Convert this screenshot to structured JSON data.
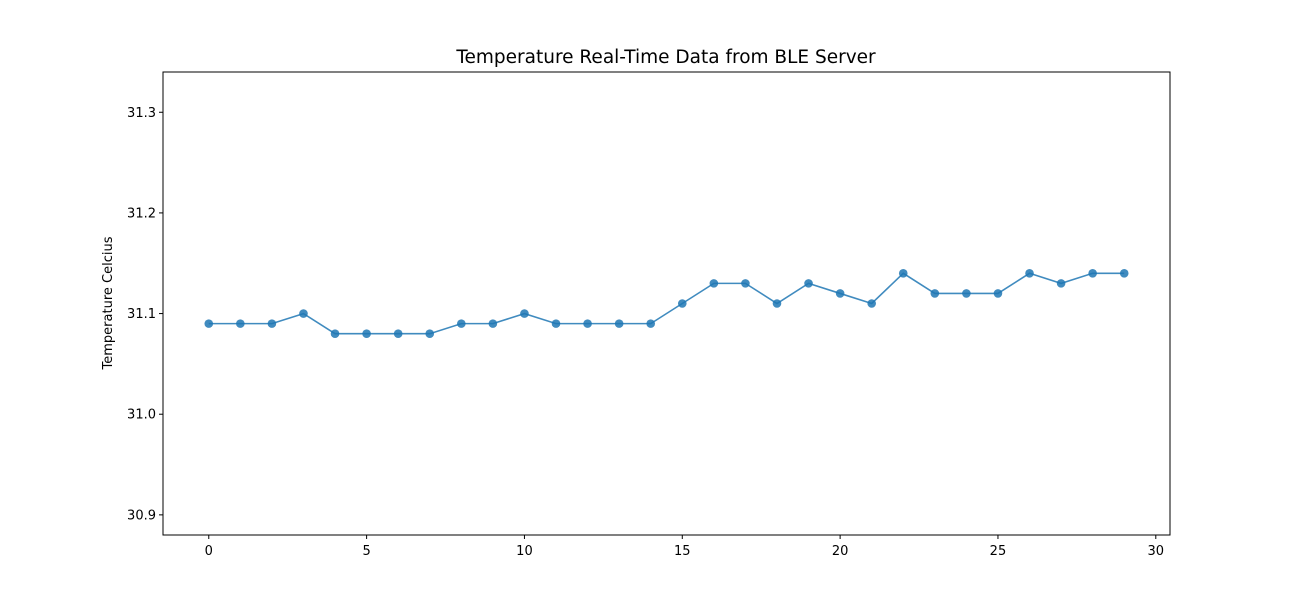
{
  "chart_data": {
    "type": "line",
    "title": "Temperature Real-Time Data from BLE Server",
    "xlabel": "",
    "ylabel": "Temperature Celcius",
    "xlim": [
      -1.45,
      30.45
    ],
    "ylim": [
      30.88,
      31.34
    ],
    "x_ticks": [
      0,
      5,
      10,
      15,
      20,
      25,
      30
    ],
    "y_ticks": [
      30.9,
      31.0,
      31.1,
      31.2,
      31.3
    ],
    "x_tick_labels": [
      "0",
      "5",
      "10",
      "15",
      "20",
      "25",
      "30"
    ],
    "y_tick_labels": [
      "30.9",
      "31.0",
      "31.1",
      "31.2",
      "31.3"
    ],
    "grid": false,
    "legend": "none",
    "line_color": "#1f77b4",
    "marker": "circle",
    "series": [
      {
        "x": [
          0,
          1,
          2,
          3,
          4,
          5,
          6,
          7,
          8,
          9,
          10,
          11,
          12,
          13,
          14,
          15,
          16,
          17,
          18,
          19,
          20,
          21,
          22,
          23,
          24,
          25,
          26,
          27,
          28,
          29
        ],
        "values": [
          31.09,
          31.09,
          31.09,
          31.1,
          31.08,
          31.08,
          31.08,
          31.08,
          31.09,
          31.09,
          31.1,
          31.09,
          31.09,
          31.09,
          31.09,
          31.11,
          31.13,
          31.13,
          31.11,
          31.13,
          31.12,
          31.11,
          31.14,
          31.12,
          31.12,
          31.12,
          31.14,
          31.13,
          31.14,
          31.14
        ]
      }
    ]
  }
}
